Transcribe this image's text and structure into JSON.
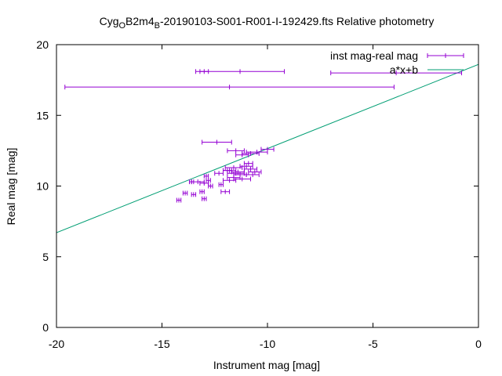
{
  "chart_data": {
    "type": "scatter",
    "title": {
      "prefix": "Cyg",
      "sub1": "O",
      "mid": "B2m4",
      "sub2": "B",
      "rest": "-20190103-S001-R001-I-192429.fts Relative photometry"
    },
    "xlabel": "Instrument mag [mag]",
    "ylabel": "Real mag [mag]",
    "xlim": [
      -20,
      0
    ],
    "ylim": [
      0,
      20
    ],
    "xticks": [
      -20,
      -15,
      -10,
      -5,
      0
    ],
    "yticks": [
      0,
      5,
      10,
      15,
      20
    ],
    "legend_position": "top-right",
    "series": [
      {
        "name": "inst mag-real mag",
        "type": "errorbars",
        "color": "#9400d3",
        "points": [
          {
            "x": -11.3,
            "y": 18.1,
            "xerr": 2.1
          },
          {
            "x": -13.0,
            "y": 18.1,
            "xerr": 0.2
          },
          {
            "x": -3.9,
            "y": 18.0,
            "xerr": 3.1
          },
          {
            "x": -11.8,
            "y": 17.0,
            "xerr": 7.8
          },
          {
            "x": -12.4,
            "y": 13.1,
            "xerr": 0.7
          },
          {
            "x": -11.5,
            "y": 12.5,
            "xerr": 0.4
          },
          {
            "x": -10.5,
            "y": 12.4,
            "xerr": 0.5
          },
          {
            "x": -10.0,
            "y": 12.6,
            "xerr": 0.3
          },
          {
            "x": -10.8,
            "y": 12.3,
            "xerr": 0.4
          },
          {
            "x": -11.2,
            "y": 12.2,
            "xerr": 0.3
          },
          {
            "x": -10.9,
            "y": 11.6,
            "xerr": 0.2
          },
          {
            "x": -11.0,
            "y": 11.4,
            "xerr": 0.3
          },
          {
            "x": -11.6,
            "y": 11.3,
            "xerr": 0.4
          },
          {
            "x": -11.8,
            "y": 11.1,
            "xerr": 0.3
          },
          {
            "x": -11.4,
            "y": 11.0,
            "xerr": 0.3
          },
          {
            "x": -11.5,
            "y": 10.9,
            "xerr": 0.4
          },
          {
            "x": -11.3,
            "y": 10.8,
            "xerr": 0.3
          },
          {
            "x": -10.8,
            "y": 11.2,
            "xerr": 0.3
          },
          {
            "x": -10.6,
            "y": 11.0,
            "xerr": 0.3
          },
          {
            "x": -10.7,
            "y": 10.8,
            "xerr": 0.3
          },
          {
            "x": -11.6,
            "y": 10.6,
            "xerr": 0.3
          },
          {
            "x": -11.2,
            "y": 10.5,
            "xerr": 0.4
          },
          {
            "x": -11.8,
            "y": 10.4,
            "xerr": 0.3
          },
          {
            "x": -12.3,
            "y": 10.9,
            "xerr": 0.2
          },
          {
            "x": -11.9,
            "y": 11.1,
            "xerr": 0.2
          },
          {
            "x": -12.2,
            "y": 10.1,
            "xerr": 0.1
          },
          {
            "x": -12.0,
            "y": 9.6,
            "xerr": 0.2
          },
          {
            "x": -12.9,
            "y": 10.7,
            "xerr": 0.1
          },
          {
            "x": -12.8,
            "y": 10.4,
            "xerr": 0.1
          },
          {
            "x": -13.0,
            "y": 10.2,
            "xerr": 0.2
          },
          {
            "x": -12.7,
            "y": 10.0,
            "xerr": 0.1
          },
          {
            "x": -13.3,
            "y": 10.3,
            "xerr": 0.3
          },
          {
            "x": -13.6,
            "y": 10.3,
            "xerr": 0.1
          },
          {
            "x": -13.1,
            "y": 9.6,
            "xerr": 0.1
          },
          {
            "x": -13.5,
            "y": 9.4,
            "xerr": 0.1
          },
          {
            "x": -13.9,
            "y": 9.5,
            "xerr": 0.1
          },
          {
            "x": -14.2,
            "y": 9.0,
            "xerr": 0.1
          },
          {
            "x": -13.0,
            "y": 9.1,
            "xerr": 0.1
          }
        ]
      },
      {
        "name": "a*x+b",
        "type": "line",
        "color": "#009e73",
        "x": [
          -20,
          0
        ],
        "y": [
          6.7,
          18.6
        ]
      }
    ]
  }
}
